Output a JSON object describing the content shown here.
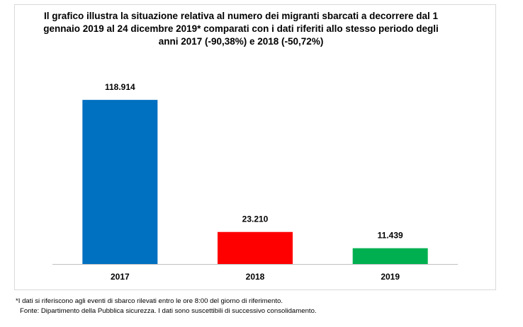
{
  "chart_data": {
    "type": "bar",
    "title": "Il grafico illustra la situazione relativa al numero dei migranti sbarcati a decorrere dal 1 gennaio 2019 al 24 dicembre 2019* comparati con i dati riferiti allo stesso periodo degli anni 2017 (-90,38%) e 2018 (-50,72%)",
    "title_lines": [
      "Il grafico illustra la situazione relativa al numero dei migranti sbarcati a decorrere dal 1",
      "gennaio 2019 al 24 dicembre 2019* comparati con i dati riferiti allo stesso periodo degli",
      "anni 2017 (-90,38%) e 2018 (-50,72%)"
    ],
    "categories": [
      "2017",
      "2018",
      "2019"
    ],
    "values": [
      118914,
      23210,
      11439
    ],
    "data_labels": [
      "118.914",
      "23.210",
      "11.439"
    ],
    "colors": [
      "#0070c0",
      "#ff0000",
      "#00b050"
    ],
    "ylim": [
      0,
      140000
    ],
    "grid": false,
    "legend": "none"
  },
  "footnotes": [
    "*I dati si riferiscono agli eventi di sbarco rilevati entro le ore 8:00 del giorno di riferimento.",
    "Fonte: Dipartimento della Pubblica sicurezza. I dati sono suscettibili di successivo consolidamento."
  ]
}
